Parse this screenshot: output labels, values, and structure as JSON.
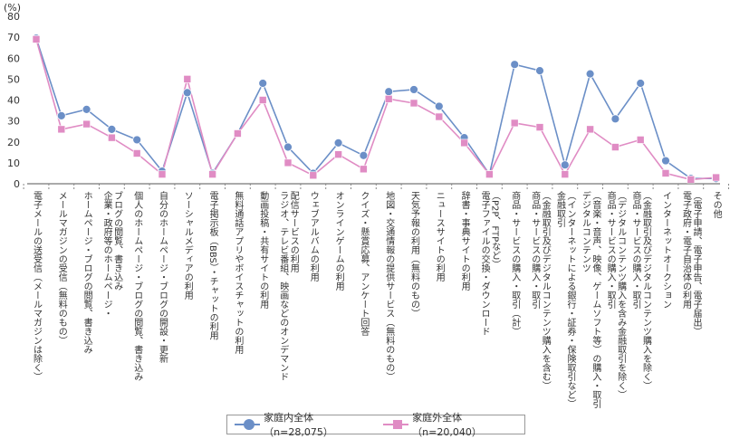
{
  "chart_data": {
    "type": "line",
    "y_unit_label": "(%)",
    "ylim": [
      0,
      80
    ],
    "yticks": [
      0,
      10,
      20,
      30,
      40,
      50,
      60,
      70,
      80
    ],
    "grid": false,
    "legend_position": "bottom",
    "categories": [
      "電子メールの送受信（メールマガジンは除く）",
      "メールマガジンの受信（無料のもの）",
      "ホームページ・ブログの閲覧、書き込み",
      "企業・政府等のホームページ・ブログの閲覧、書き込み",
      "個人のホームページ・ブログの閲覧、書き込み",
      "自分のホームページ・ブログの開設・更新",
      "ソーシャルメディアの利用",
      "電子掲示板（BBS）・チャットの利用",
      "無料通話アプリやボイスチャットの利用",
      "動画投稿・共有サイトの利用",
      "ラジオ、テレビ番組、映画などのオンデマンド配信サービスの利用",
      "ウェブアルバムの利用",
      "オンラインゲームの利用",
      "クイズ・懸賞応募、アンケート回答",
      "地図・交通情報の提供サービス（無料のもの）",
      "天気予報の利用（無料のもの）",
      "ニュースサイトの利用",
      "辞書・事典サイトの利用",
      "電子ファイルの交換・ダウンロード（P2P、FTPなど）",
      "商品・サービスの購入・取引（計）",
      "商品・サービスの購入・取引（金融取引及びデジタルコンテンツ購入を含む）",
      "金融取引（インターネットによる銀行・証券・保険取引など）",
      "デジタルコンテンツ（音楽・音声、映像、ゲームソフト等）の購入・取引",
      "商品・サービスの購入・取引（デジタルコンテンツ購入を含み金融取引を除く）",
      "商品・サービスの購入・取引（金融取引及びデジタルコンテンツ購入を除く）",
      "インターネットオークション",
      "電子政府・電子自治体の利用（電子申請、電子申告、電子届出）",
      "その他"
    ],
    "label_lines": [
      [
        "電子メールの送受信（メールマガジンは除く）"
      ],
      [
        "メールマガジンの受信（無料のもの）"
      ],
      [
        "ホームページ・ブログの閲覧、書き込み"
      ],
      [
        "企業・政府等のホームページ・",
        "ブログの閲覧、書き込み"
      ],
      [
        "個人のホームページ・ブログの閲覧、書き込み"
      ],
      [
        "自分のホームページ・ブログの開設・更新"
      ],
      [
        "ソーシャルメディアの利用"
      ],
      [
        "電子掲示板（BBS）・チャットの利用"
      ],
      [
        "無料通話アプリやボイスチャットの利用"
      ],
      [
        "動画投稿・共有サイトの利用"
      ],
      [
        "ラジオ、テレビ番組、映画などのオンデマンド",
        "配信サービスの利用"
      ],
      [
        "ウェブアルバムの利用"
      ],
      [
        "オンラインゲームの利用"
      ],
      [
        "クイズ・懸賞応募、アンケート回答"
      ],
      [
        "地図・交通情報の提供サービス（無料のもの）"
      ],
      [
        "天気予報の利用（無料のもの）"
      ],
      [
        "ニュースサイトの利用"
      ],
      [
        "辞書・事典サイトの利用"
      ],
      [
        "電子ファイルの交換・ダウンロード",
        "（P2P、FTPなど）"
      ],
      [
        "商品・サービスの購入・取引（計）"
      ],
      [
        "商品・サービスの購入・取引",
        "（金融取引及びデジタルコンテンツ購入を含む）"
      ],
      [
        "金融取引",
        "（インターネットによる銀行・証券・保険取引など）"
      ],
      [
        "デジタルコンテンツ",
        "（音楽・音声、映像、ゲームソフト等）の購入・取引"
      ],
      [
        "商品・サービスの購入・取引",
        "（デジタルコンテンツ購入を含み金融取引を除く）"
      ],
      [
        "商品・サービスの購入・取引",
        "（金融取引及びデジタルコンテンツ購入を除く）"
      ],
      [
        "インターネットオークション"
      ],
      [
        "電子政府・電子自治体の利用",
        "（電子申請、電子申告、電子届出）"
      ],
      [
        "その他"
      ]
    ],
    "series": [
      {
        "name": "家庭内全体（n=28,075）",
        "color": "#6b8fc7",
        "marker": "circle",
        "values": [
          69.5,
          32.5,
          35.5,
          26,
          21,
          6,
          43.5,
          5,
          24,
          48,
          17.5,
          5,
          19.5,
          13.5,
          44,
          45,
          37,
          22,
          4.5,
          57,
          54,
          9,
          52.5,
          31,
          48,
          11,
          2.5,
          2.5
        ]
      },
      {
        "name": "家庭外全体（n=20,040）",
        "color": "#e08cc4",
        "marker": "square",
        "values": [
          69,
          26,
          28.5,
          22,
          14.5,
          4.5,
          50,
          4.5,
          24,
          40,
          10,
          4,
          14,
          7,
          40.5,
          38.5,
          32,
          19.5,
          4.5,
          29,
          27,
          4.5,
          26,
          17.5,
          21,
          5,
          2,
          3
        ]
      }
    ]
  }
}
